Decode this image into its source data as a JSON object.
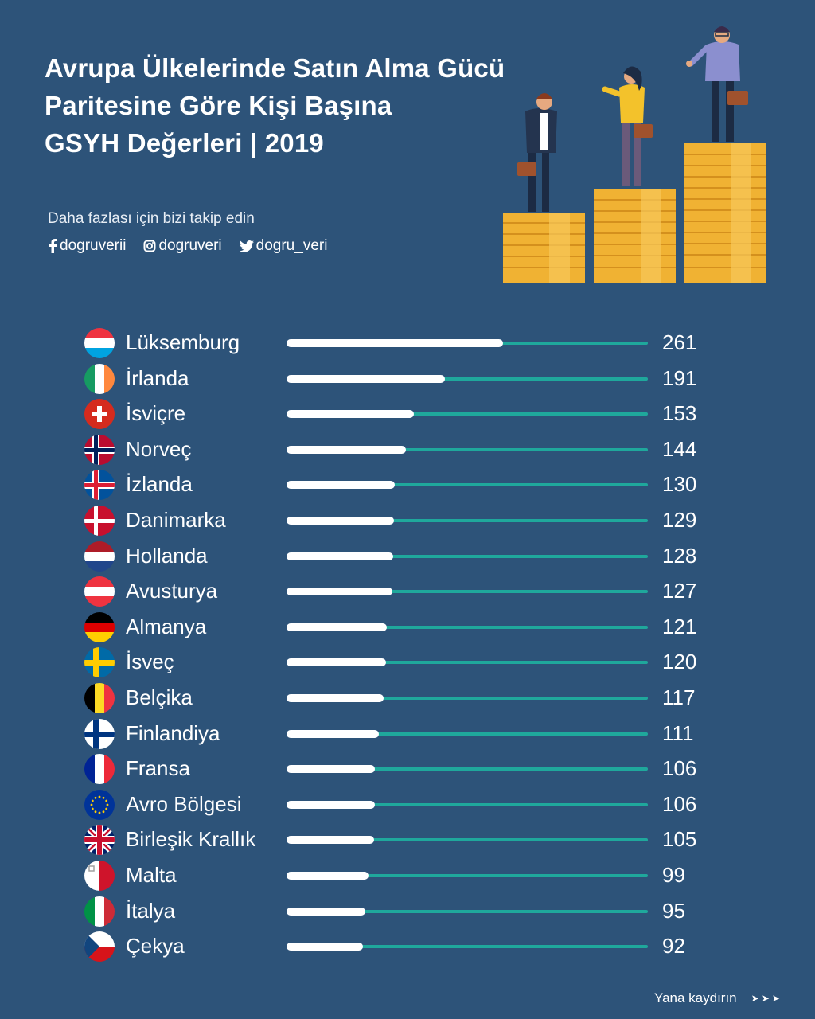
{
  "header": {
    "title_lines": [
      "Avrupa Ülkelerinde Satın Alma Gücü",
      "Paritesine Göre Kişi Başına",
      "GSYH Değerleri | 2019"
    ],
    "follow_text": "Daha fazlası için bizi takip edin",
    "socials": [
      {
        "icon": "facebook-icon",
        "handle": "dogruverii"
      },
      {
        "icon": "instagram-icon",
        "handle": "dogruveri"
      },
      {
        "icon": "twitter-icon",
        "handle": "dogru_veri"
      }
    ]
  },
  "footer": {
    "label": "Yana kaydırın",
    "arrows": "➤➤➤"
  },
  "colors": {
    "background": "#2d5379",
    "track": "#1fa89c",
    "fill": "#ffffff",
    "coin": "#f0b233"
  },
  "chart_data": {
    "type": "bar",
    "orientation": "horizontal",
    "title": "Avrupa Ülkelerinde Satın Alma Gücü Paritesine Göre Kişi Başına GSYH Değerleri | 2019",
    "xlim": [
      0,
      435
    ],
    "categories": [
      "Lüksemburg",
      "İrlanda",
      "İsviçre",
      "Norveç",
      "İzlanda",
      "Danimarka",
      "Hollanda",
      "Avusturya",
      "Almanya",
      "İsveç",
      "Belçika",
      "Finlandiya",
      "Fransa",
      "Avro Bölgesi",
      "Birleşik Krallık",
      "Malta",
      "İtalya",
      "Çekya"
    ],
    "values": [
      261,
      191,
      153,
      144,
      130,
      129,
      128,
      127,
      121,
      120,
      117,
      111,
      106,
      106,
      105,
      99,
      95,
      92
    ],
    "flags": [
      "luxembourg-flag",
      "ireland-flag",
      "switzerland-flag",
      "norway-flag",
      "iceland-flag",
      "denmark-flag",
      "netherlands-flag",
      "austria-flag",
      "germany-flag",
      "sweden-flag",
      "belgium-flag",
      "finland-flag",
      "france-flag",
      "eu-flag",
      "uk-flag",
      "malta-flag",
      "italy-flag",
      "czechia-flag"
    ]
  }
}
